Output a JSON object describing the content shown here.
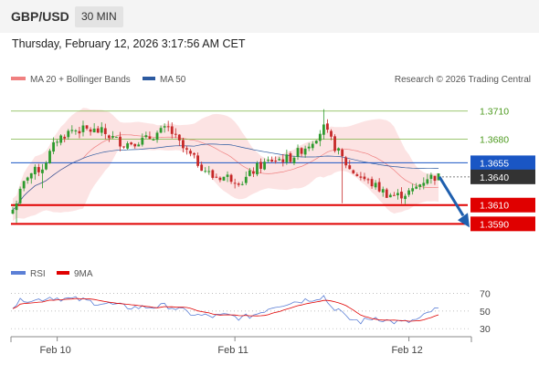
{
  "header": {
    "symbol": "GBP/USD",
    "timeframe": "30 MIN"
  },
  "datetime": "Thursday, February 12, 2026 3:17:56 AM CET",
  "watermark": "Research © 2026 Trading Central",
  "colors": {
    "bollinger": "#f08080",
    "ma50": "#2c5aa0",
    "up": "#2e9b2e",
    "down": "#c62828",
    "support": "#e00000",
    "resistance": "#7cb342",
    "pivot": "#1a56c4",
    "arrow": "#1f5fae",
    "rsi": "#5b7fd6",
    "rsi_ma": "#e00000"
  },
  "chart_data": [
    {
      "type": "candlestick",
      "legend": [
        {
          "name": "MA 20 + Bollinger Bands",
          "color": "#f08080"
        },
        {
          "name": "MA 50",
          "color": "#2c5aa0"
        }
      ],
      "x_tick_labels": [
        "Feb 10",
        "Feb 11",
        "Feb 12"
      ],
      "x_tick_index": [
        12,
        60,
        107
      ],
      "n_bars": 116,
      "ylim": [
        1.3568,
        1.3735
      ],
      "levels": [
        {
          "value": 1.371,
          "label": "1.3710",
          "kind": "resistance"
        },
        {
          "value": 1.368,
          "label": "1.3680",
          "kind": "resistance"
        },
        {
          "value": 1.3655,
          "label": "1.3655",
          "kind": "pivot"
        },
        {
          "value": 1.364,
          "label": "1.3640",
          "kind": "last"
        },
        {
          "value": 1.361,
          "label": "1.3610",
          "kind": "support"
        },
        {
          "value": 1.359,
          "label": "1.3590",
          "kind": "support"
        }
      ],
      "arrow": {
        "from_value": 1.364,
        "to_value": 1.3592
      },
      "close_anchors": [
        [
          0,
          1.3605
        ],
        [
          4,
          1.3642
        ],
        [
          8,
          1.365
        ],
        [
          12,
          1.368
        ],
        [
          16,
          1.369
        ],
        [
          20,
          1.369
        ],
        [
          24,
          1.3688
        ],
        [
          30,
          1.3675
        ],
        [
          36,
          1.368
        ],
        [
          42,
          1.3692
        ],
        [
          46,
          1.367
        ],
        [
          50,
          1.3655
        ],
        [
          54,
          1.364
        ],
        [
          58,
          1.364
        ],
        [
          62,
          1.3635
        ],
        [
          66,
          1.365
        ],
        [
          70,
          1.3658
        ],
        [
          75,
          1.366
        ],
        [
          80,
          1.3675
        ],
        [
          84,
          1.3692
        ],
        [
          87,
          1.3672
        ],
        [
          89,
          1.366
        ],
        [
          91,
          1.3648
        ],
        [
          94,
          1.364
        ],
        [
          98,
          1.363
        ],
        [
          101,
          1.3622
        ],
        [
          104,
          1.362
        ],
        [
          108,
          1.3625
        ],
        [
          112,
          1.364
        ]
      ]
    },
    {
      "type": "line",
      "legend": [
        {
          "name": "RSI",
          "color": "#5b7fd6"
        },
        {
          "name": "9MA",
          "color": "#e00000"
        }
      ],
      "y_ticks": [
        70,
        50,
        30
      ],
      "ylim": [
        25,
        80
      ],
      "rsi_anchors": [
        [
          0,
          55
        ],
        [
          3,
          64
        ],
        [
          6,
          62
        ],
        [
          10,
          66
        ],
        [
          14,
          64
        ],
        [
          18,
          63
        ],
        [
          22,
          60
        ],
        [
          26,
          58
        ],
        [
          30,
          55
        ],
        [
          34,
          54
        ],
        [
          38,
          55
        ],
        [
          42,
          56
        ],
        [
          46,
          50
        ],
        [
          50,
          45
        ],
        [
          54,
          44
        ],
        [
          58,
          45
        ],
        [
          62,
          42
        ],
        [
          66,
          47
        ],
        [
          70,
          55
        ],
        [
          74,
          59
        ],
        [
          78,
          62
        ],
        [
          82,
          65
        ],
        [
          84,
          67
        ],
        [
          86,
          55
        ],
        [
          88,
          52
        ],
        [
          90,
          42
        ],
        [
          94,
          38
        ],
        [
          98,
          43
        ],
        [
          102,
          38
        ],
        [
          106,
          37
        ],
        [
          110,
          41
        ],
        [
          113,
          50
        ],
        [
          116,
          53
        ]
      ]
    }
  ]
}
